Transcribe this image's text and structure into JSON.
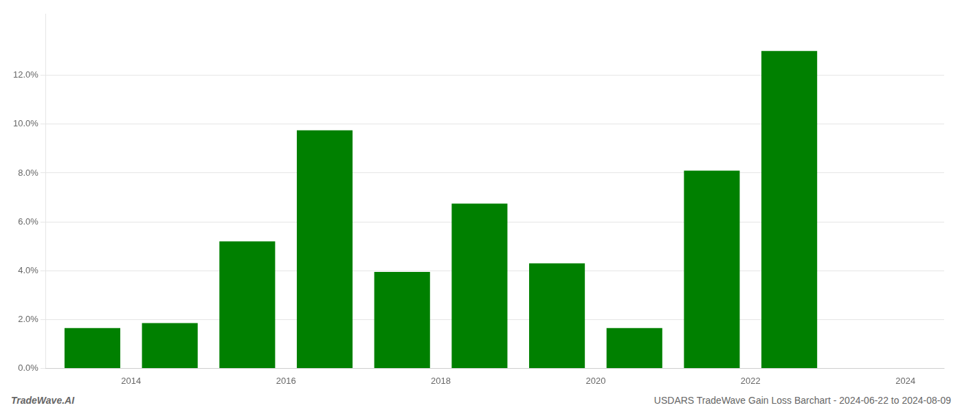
{
  "chart_data": {
    "type": "bar",
    "x": [
      2014,
      2015,
      2016,
      2017,
      2018,
      2019,
      2020,
      2021,
      2022,
      2023
    ],
    "values": [
      0.0165,
      0.0185,
      0.052,
      0.0975,
      0.0395,
      0.0675,
      0.043,
      0.0165,
      0.081,
      0.13
    ],
    "color": "#008000",
    "xlim": [
      2013.4,
      2025.0
    ],
    "xticks": [
      {
        "value": 2014.5,
        "label": "2014"
      },
      {
        "value": 2016.5,
        "label": "2016"
      },
      {
        "value": 2018.5,
        "label": "2018"
      },
      {
        "value": 2020.5,
        "label": "2020"
      },
      {
        "value": 2022.5,
        "label": "2022"
      },
      {
        "value": 2024.5,
        "label": "2024"
      }
    ],
    "ylim": [
      0,
      0.145
    ],
    "yticks": [
      {
        "value": 0.0,
        "label": "0.0%"
      },
      {
        "value": 0.02,
        "label": "2.0%"
      },
      {
        "value": 0.04,
        "label": "4.0%"
      },
      {
        "value": 0.06,
        "label": "6.0%"
      },
      {
        "value": 0.08,
        "label": "8.0%"
      },
      {
        "value": 0.1,
        "label": "10.0%"
      },
      {
        "value": 0.12,
        "label": "12.0%"
      }
    ],
    "grid": true,
    "annotations": [
      "TradeWave.AI",
      "USDARS TradeWave Gain Loss Barchart - 2024-06-22 to 2024-08-09"
    ]
  }
}
